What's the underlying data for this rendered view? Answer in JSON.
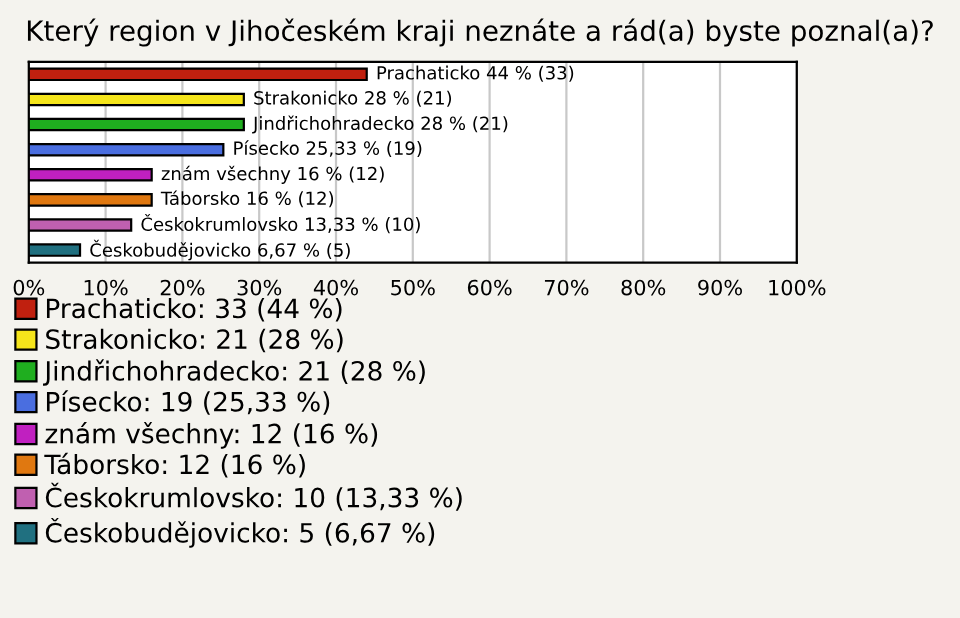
{
  "chart_data": {
    "type": "bar",
    "orientation": "horizontal",
    "title": "Který region v Jihočeském kraji neznáte a rád(a) byste poznal(a)?",
    "categories": [
      null,
      null,
      null,
      null,
      null,
      null,
      null,
      null
    ],
    "series": [
      {
        "name": "Prachaticko: 33 (44 %)",
        "color": "#c0200f",
        "values": [
          44,
          null,
          null,
          null,
          null,
          null,
          null,
          null
        ],
        "value_labels": [
          "Prachaticko 44 % (33)",
          null,
          null,
          null,
          null,
          null,
          null,
          null
        ]
      },
      {
        "name": "Strakonicko: 21 (28 %)",
        "color": "#f5e51b",
        "values": [
          null,
          28,
          null,
          null,
          null,
          null,
          null,
          null
        ],
        "value_labels": [
          null,
          "Strakonicko 28 % (21)",
          null,
          null,
          null,
          null,
          null,
          null
        ]
      },
      {
        "name": "Jindřichohradecko: 21 (28 %)",
        "color": "#1fae1f",
        "values": [
          null,
          null,
          28,
          null,
          null,
          null,
          null,
          null
        ],
        "value_labels": [
          null,
          null,
          "Jindřichohradecko 28 % (21)",
          null,
          null,
          null,
          null,
          null
        ]
      },
      {
        "name": "Písecko: 19 (25,33 %)",
        "color": "#4a6ee0",
        "values": [
          null,
          null,
          null,
          25.33,
          null,
          null,
          null,
          null
        ],
        "value_labels": [
          null,
          null,
          null,
          "Písecko 25,33 % (19)",
          null,
          null,
          null,
          null
        ]
      },
      {
        "name": "znám všechny: 12 (16 %)",
        "color": "#c020c0",
        "values": [
          null,
          null,
          null,
          null,
          16,
          null,
          null,
          null
        ],
        "value_labels": [
          null,
          null,
          null,
          null,
          "znám všechny 16 % (12)",
          null,
          null,
          null
        ]
      },
      {
        "name": "Táborsko: 12 (16 %)",
        "color": "#e07810",
        "values": [
          null,
          null,
          null,
          null,
          null,
          16,
          null,
          null
        ],
        "value_labels": [
          null,
          null,
          null,
          null,
          null,
          "Táborsko 16 % (12)",
          null,
          null
        ]
      },
      {
        "name": "Českokrumlovsko: 10 (13,33 %)",
        "color": "#c060b0",
        "values": [
          null,
          null,
          null,
          null,
          null,
          null,
          13.33,
          null
        ],
        "value_labels": [
          null,
          null,
          null,
          null,
          null,
          null,
          "Českokrumlovsko 13,33 % (10)",
          null
        ]
      },
      {
        "name": "Českobudějovicko: 5 (6,67 %)",
        "color": "#207080",
        "values": [
          null,
          null,
          null,
          null,
          null,
          null,
          null,
          6.67
        ],
        "value_labels": [
          null,
          null,
          null,
          null,
          null,
          null,
          null,
          "Českobudějovicko 6,67 % (5)"
        ]
      }
    ],
    "xlim": [
      0,
      100
    ],
    "xticks": [
      {
        "value": 0,
        "label": "0%"
      },
      {
        "value": 10,
        "label": "10%"
      },
      {
        "value": 20,
        "label": "20%"
      },
      {
        "value": 30,
        "label": "30%"
      },
      {
        "value": 40,
        "label": "40%"
      },
      {
        "value": 50,
        "label": "50%"
      },
      {
        "value": 60,
        "label": "60%"
      },
      {
        "value": 70,
        "label": "70%"
      },
      {
        "value": 80,
        "label": "80%"
      },
      {
        "value": 90,
        "label": "90%"
      },
      {
        "value": 100,
        "label": "100%"
      }
    ],
    "grid": "x",
    "legend": "bottom",
    "tick_labels": "x"
  }
}
